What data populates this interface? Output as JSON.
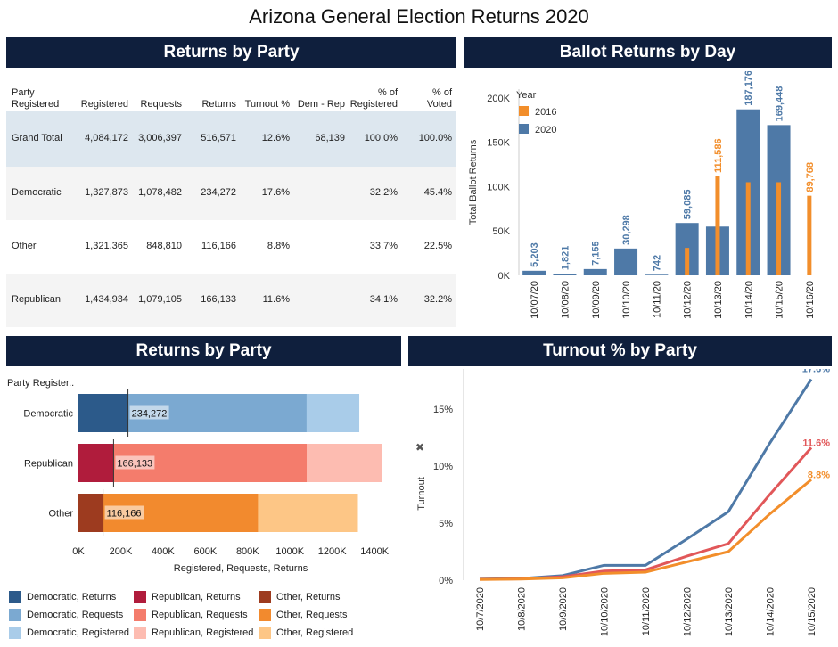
{
  "page_title": "Arizona General Election Returns 2020",
  "banners": {
    "returns_table": "Returns by Party",
    "ballot_by_day": "Ballot Returns by Day",
    "returns_bars": "Returns by Party",
    "turnout": "Turnout % by Party"
  },
  "table": {
    "headers": [
      "Party\nRegistered",
      "Registered",
      "Requests",
      "Returns",
      "Turnout %",
      "Dem - Rep",
      "% of\nRegistered",
      "% of\nVoted"
    ],
    "rows": [
      {
        "party": "Grand Total",
        "registered": "4,084,172",
        "requests": "3,006,397",
        "returns": "516,571",
        "turnout": "12.6%",
        "dem_rep": "68,139",
        "pct_registered": "100.0%",
        "pct_voted": "100.0%"
      },
      {
        "party": "Democratic",
        "registered": "1,327,873",
        "requests": "1,078,482",
        "returns": "234,272",
        "turnout": "17.6%",
        "dem_rep": "",
        "pct_registered": "32.2%",
        "pct_voted": "45.4%"
      },
      {
        "party": "Other",
        "registered": "1,321,365",
        "requests": "848,810",
        "returns": "116,166",
        "turnout": "8.8%",
        "dem_rep": "",
        "pct_registered": "33.7%",
        "pct_voted": "22.5%"
      },
      {
        "party": "Republican",
        "registered": "1,434,934",
        "requests": "1,079,105",
        "returns": "166,133",
        "turnout": "11.6%",
        "dem_rep": "",
        "pct_registered": "34.1%",
        "pct_voted": "32.2%"
      }
    ]
  },
  "colors": {
    "banner": "#0f1f3d",
    "y2016": "#f28e2b",
    "y2020": "#4e79a7",
    "dem_returns": "#2c5a8a",
    "dem_requests": "#7ba9d1",
    "dem_registered": "#a9cce9",
    "rep_returns": "#b01c3c",
    "rep_requests": "#f47c6c",
    "rep_registered": "#fdbcb1",
    "oth_returns": "#9d3b1f",
    "oth_requests": "#f28a2e",
    "oth_registered": "#fdc686",
    "line_dem": "#4e79a7",
    "line_rep": "#e15759",
    "line_oth": "#f28e2b"
  },
  "chart_data": [
    {
      "id": "ballot_by_day",
      "type": "bar",
      "title": "Ballot Returns by Day",
      "xlabel": "",
      "ylabel": "Total Ballot Returns",
      "ylim": [
        0,
        210000
      ],
      "yticks": [
        0,
        50000,
        100000,
        150000,
        200000
      ],
      "ytick_labels": [
        "0K",
        "50K",
        "100K",
        "150K",
        "200K"
      ],
      "legend_title": "Year",
      "legend_position": "top-left",
      "categories": [
        "10/07/20",
        "10/08/20",
        "10/09/20",
        "10/10/20",
        "10/11/20",
        "10/12/20",
        "10/13/20",
        "10/14/20",
        "10/15/20",
        "10/16/20"
      ],
      "series": [
        {
          "name": "2016",
          "values": [
            null,
            null,
            null,
            null,
            null,
            31000,
            111586,
            105000,
            105000,
            89768
          ],
          "labels": [
            "",
            "",
            "",
            "",
            "",
            "",
            "111,586",
            "",
            "",
            "89,768"
          ]
        },
        {
          "name": "2020",
          "values": [
            5203,
            1821,
            7155,
            30298,
            742,
            59085,
            55000,
            187176,
            169448,
            null
          ],
          "labels": [
            "5,203",
            "1,821",
            "7,155",
            "30,298",
            "742",
            "59,085",
            "",
            "187,176",
            "169,448",
            ""
          ]
        }
      ]
    },
    {
      "id": "returns_bars",
      "type": "bar",
      "orientation": "horizontal",
      "title": "Returns by Party",
      "row_header": "Party Register..",
      "xlabel": "Registered, Requests, Returns",
      "xlim": [
        0,
        1450000
      ],
      "xticks": [
        0,
        200000,
        400000,
        600000,
        800000,
        1000000,
        1200000,
        1400000
      ],
      "xtick_labels": [
        "0K",
        "200K",
        "400K",
        "600K",
        "800K",
        "1000K",
        "1200K",
        "1400K"
      ],
      "categories": [
        "Democratic",
        "Republican",
        "Other"
      ],
      "series": [
        {
          "name": "Registered",
          "values": [
            1327873,
            1434934,
            1321365
          ]
        },
        {
          "name": "Requests",
          "values": [
            1078482,
            1079105,
            848810
          ]
        },
        {
          "name": "Returns",
          "values": [
            234272,
            166133,
            116166
          ]
        }
      ],
      "return_labels": [
        "234,272",
        "166,133",
        "116,166"
      ],
      "legend": [
        [
          "Democratic, Returns",
          "Republican, Returns",
          "Other, Returns"
        ],
        [
          "Democratic, Requests",
          "Republican, Requests",
          "Other, Requests"
        ],
        [
          "Democratic, Registered",
          "Republican, Registered",
          "Other, Registered"
        ]
      ]
    },
    {
      "id": "turnout",
      "type": "line",
      "title": "Turnout % by Party",
      "xlabel": "",
      "ylabel": "Turnout",
      "ylim": [
        0,
        0.185
      ],
      "yticks": [
        0,
        0.05,
        0.1,
        0.15
      ],
      "ytick_labels": [
        "0%",
        "5%",
        "10%",
        "15%"
      ],
      "x": [
        "10/7/2020",
        "10/8/2020",
        "10/9/2020",
        "10/10/2020",
        "10/11/2020",
        "10/12/2020",
        "10/13/2020",
        "10/14/2020",
        "10/15/2020"
      ],
      "series": [
        {
          "name": "Democratic",
          "values": [
            0.001,
            0.0015,
            0.004,
            0.013,
            0.013,
            0.036,
            0.06,
            0.12,
            0.176
          ],
          "end_label": "17.6%"
        },
        {
          "name": "Republican",
          "values": [
            0.0008,
            0.0012,
            0.003,
            0.008,
            0.009,
            0.021,
            0.032,
            0.075,
            0.116
          ],
          "end_label": "11.6%"
        },
        {
          "name": "Other",
          "values": [
            0.0006,
            0.001,
            0.002,
            0.006,
            0.007,
            0.016,
            0.025,
            0.058,
            0.088
          ],
          "end_label": "8.8%"
        }
      ]
    }
  ]
}
